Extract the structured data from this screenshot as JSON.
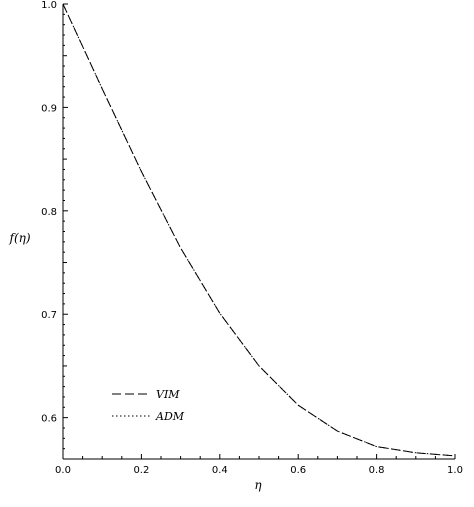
{
  "chart_data": {
    "type": "line",
    "xlabel": "η",
    "ylabel": "f(η)",
    "xlim": [
      0.0,
      1.0
    ],
    "ylim": [
      0.56,
      1.0
    ],
    "xticks": [
      "0.0",
      "0.2",
      "0.4",
      "0.6",
      "0.8",
      "1.0"
    ],
    "yticks": [
      "0.6",
      "0.7",
      "0.8",
      "0.9",
      "1.0"
    ],
    "legend_position": "bottom-left",
    "series": [
      {
        "name": "VIM",
        "style": "dashed",
        "color": "#000000",
        "x": [
          0.0,
          0.1,
          0.2,
          0.3,
          0.4,
          0.5,
          0.6,
          0.7,
          0.8,
          0.9,
          1.0
        ],
        "y": [
          1.0,
          0.918,
          0.838,
          0.764,
          0.701,
          0.65,
          0.612,
          0.587,
          0.572,
          0.566,
          0.563
        ]
      },
      {
        "name": "ADM",
        "style": "dotted",
        "color": "#000000",
        "x": [
          0.0,
          0.1,
          0.2,
          0.3,
          0.4,
          0.5,
          0.6,
          0.7,
          0.8,
          0.9,
          1.0
        ],
        "y": [
          1.0,
          0.918,
          0.838,
          0.764,
          0.701,
          0.65,
          0.612,
          0.587,
          0.572,
          0.566,
          0.563
        ]
      }
    ]
  }
}
